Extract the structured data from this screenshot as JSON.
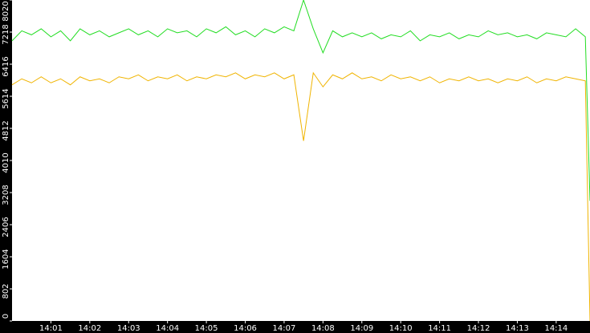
{
  "chart_data": {
    "type": "line",
    "x": [
      0,
      0.25,
      0.5,
      0.75,
      1,
      1.25,
      1.5,
      1.75,
      2,
      2.25,
      2.5,
      2.75,
      3,
      3.25,
      3.5,
      3.75,
      4,
      4.25,
      4.5,
      4.75,
      5,
      5.25,
      5.5,
      5.75,
      6,
      6.25,
      6.5,
      6.75,
      7,
      7.25,
      7.5,
      7.75,
      8,
      8.25,
      8.5,
      8.75,
      9,
      9.25,
      9.5,
      9.75,
      10,
      10.25,
      10.5,
      10.75,
      11,
      11.25,
      11.5,
      11.75,
      12,
      12.25,
      12.5,
      12.75,
      13,
      13.25,
      13.5,
      13.75,
      14,
      14.25,
      14.5,
      14.75,
      14.87
    ],
    "series": [
      {
        "color": "#22dd22",
        "values": [
          7000,
          7250,
          7150,
          7300,
          7100,
          7250,
          7000,
          7300,
          7150,
          7250,
          7100,
          7200,
          7300,
          7150,
          7250,
          7100,
          7300,
          7200,
          7250,
          7100,
          7300,
          7200,
          7350,
          7150,
          7250,
          7100,
          7300,
          7200,
          7350,
          7250,
          8020,
          7300,
          6700,
          7250,
          7100,
          7200,
          7100,
          7200,
          7050,
          7150,
          7100,
          7250,
          7000,
          7150,
          7100,
          7200,
          7050,
          7150,
          7100,
          7250,
          7150,
          7200,
          7100,
          7150,
          7050,
          7200,
          7150,
          7100,
          7300,
          7100,
          3000
        ]
      },
      {
        "color": "#f0b400",
        "values": [
          5900,
          6050,
          5950,
          6100,
          5950,
          6050,
          5900,
          6100,
          6000,
          6050,
          5950,
          6100,
          6050,
          6150,
          6000,
          6100,
          6050,
          6150,
          6000,
          6100,
          6050,
          6150,
          6100,
          6200,
          6050,
          6150,
          6100,
          6200,
          6050,
          6150,
          4500,
          6200,
          5850,
          6150,
          6050,
          6200,
          6050,
          6100,
          6000,
          6150,
          6050,
          6100,
          6000,
          6100,
          5950,
          6050,
          6000,
          6100,
          6000,
          6050,
          5950,
          6050,
          6000,
          6100,
          5950,
          6050,
          6000,
          6100,
          6050,
          6000,
          0
        ]
      }
    ],
    "xlim": [
      0,
      14.87
    ],
    "xticks": [
      {
        "value": 1,
        "label": "14:01"
      },
      {
        "value": 2,
        "label": "14:02"
      },
      {
        "value": 3,
        "label": "14:03"
      },
      {
        "value": 4,
        "label": "14:04"
      },
      {
        "value": 5,
        "label": "14:05"
      },
      {
        "value": 6,
        "label": "14:06"
      },
      {
        "value": 7,
        "label": "14:07"
      },
      {
        "value": 8,
        "label": "14:08"
      },
      {
        "value": 9,
        "label": "14:09"
      },
      {
        "value": 10,
        "label": "14:10"
      },
      {
        "value": 11,
        "label": "14:11"
      },
      {
        "value": 12,
        "label": "14:12"
      },
      {
        "value": 13,
        "label": "14:13"
      },
      {
        "value": 14,
        "label": "14:14"
      }
    ],
    "ylim": [
      0,
      8020
    ],
    "yticks": [
      0,
      802,
      1604,
      2406,
      3208,
      4010,
      4812,
      5614,
      6416,
      7218,
      8020
    ]
  }
}
